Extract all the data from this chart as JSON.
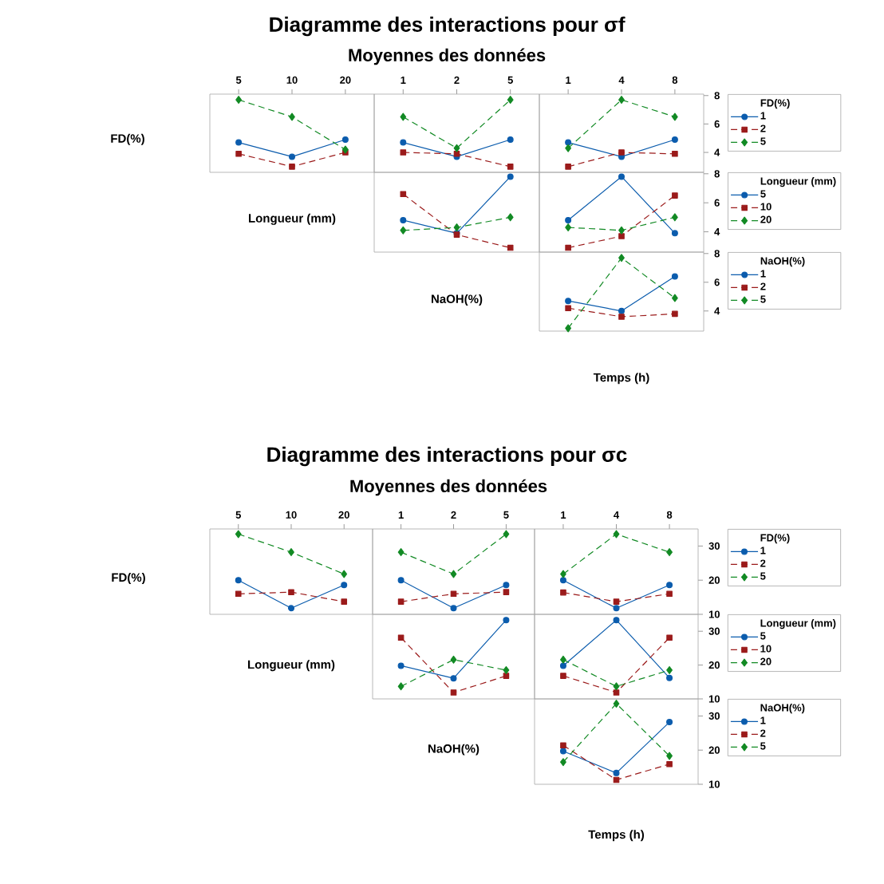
{
  "chart_data": [
    {
      "type": "line",
      "ylabel": "FD(%)",
      "xlabel": "Longueur (mm)",
      "categories": [
        "5",
        "10",
        "20"
      ],
      "ylim": [
        2.6,
        8.1
      ],
      "tick_labels": "x",
      "series": [
        {
          "color": "#0b5cad",
          "values": [
            4.7,
            3.7,
            4.9
          ],
          "marker": "circle",
          "line_style": "solid"
        },
        {
          "color": "#9b1b1b",
          "values": [
            3.9,
            3.0,
            4.0
          ],
          "marker": "square",
          "line_style": "dashed"
        },
        {
          "color": "#128a24",
          "values": [
            7.7,
            6.5,
            4.2
          ],
          "marker": "diamond",
          "line_style": "dashed"
        }
      ]
    },
    {
      "type": "line",
      "title": "Diagramme des interactions pour σf",
      "subtitle": "Moyennes des données",
      "categories": [
        "1",
        "2",
        "5"
      ],
      "ylim": [
        2.6,
        8.1
      ],
      "tick_labels": "x",
      "series": [
        {
          "color": "#0b5cad",
          "values": [
            4.7,
            3.7,
            4.9
          ],
          "marker": "circle",
          "line_style": "solid"
        },
        {
          "color": "#9b1b1b",
          "values": [
            4.0,
            3.9,
            3.0
          ],
          "marker": "square",
          "line_style": "dashed"
        },
        {
          "color": "#128a24",
          "values": [
            6.5,
            4.3,
            7.7
          ],
          "marker": "diamond",
          "line_style": "dashed"
        }
      ]
    },
    {
      "type": "line",
      "categories": [
        "1",
        "4",
        "8"
      ],
      "ylim": [
        2.6,
        8.1
      ],
      "yticks": [
        4,
        6,
        8
      ],
      "legend": "right",
      "legend_title": "FD(%)",
      "series": [
        {
          "name": "1",
          "color": "#0b5cad",
          "values": [
            4.7,
            3.7,
            4.9
          ],
          "marker": "circle",
          "line_style": "solid"
        },
        {
          "name": "2",
          "color": "#9b1b1b",
          "values": [
            3.0,
            4.0,
            3.9
          ],
          "marker": "square",
          "line_style": "dashed"
        },
        {
          "name": "5",
          "color": "#128a24",
          "values": [
            4.3,
            7.7,
            6.5
          ],
          "marker": "diamond",
          "line_style": "dashed"
        }
      ]
    },
    {
      "type": "line",
      "xlabel": "NaOH(%)",
      "categories": [
        "1",
        "2",
        "5"
      ],
      "ylim": [
        2.6,
        8.1
      ],
      "tick_labels": false,
      "series": [
        {
          "color": "#0b5cad",
          "values": [
            4.8,
            3.9,
            7.8
          ],
          "marker": "circle",
          "line_style": "solid"
        },
        {
          "color": "#9b1b1b",
          "values": [
            6.6,
            3.8,
            2.9
          ],
          "marker": "square",
          "line_style": "dashed"
        },
        {
          "color": "#128a24",
          "values": [
            4.1,
            4.3,
            5.0
          ],
          "marker": "diamond",
          "line_style": "dashed"
        }
      ]
    },
    {
      "type": "line",
      "categories": [
        "1",
        "4",
        "8"
      ],
      "ylim": [
        2.6,
        8.1
      ],
      "yticks": [
        4,
        6,
        8
      ],
      "tick_labels": "y",
      "legend": "right",
      "legend_title": "Longueur (mm)",
      "series": [
        {
          "name": "5",
          "color": "#0b5cad",
          "values": [
            4.8,
            7.8,
            3.9
          ],
          "marker": "circle",
          "line_style": "solid"
        },
        {
          "name": "10",
          "color": "#9b1b1b",
          "values": [
            2.9,
            3.7,
            6.5
          ],
          "marker": "square",
          "line_style": "dashed"
        },
        {
          "name": "20",
          "color": "#128a24",
          "values": [
            4.3,
            4.1,
            5.0
          ],
          "marker": "diamond",
          "line_style": "dashed"
        }
      ]
    },
    {
      "type": "line",
      "xlabel": "Temps (h)",
      "categories": [
        "1",
        "4",
        "8"
      ],
      "ylim": [
        2.6,
        8.1
      ],
      "yticks": [
        4,
        6,
        8
      ],
      "tick_labels": "y",
      "legend": "right",
      "legend_title": "NaOH(%)",
      "series": [
        {
          "name": "1",
          "color": "#0b5cad",
          "values": [
            4.7,
            4.0,
            6.4
          ],
          "marker": "circle",
          "line_style": "solid"
        },
        {
          "name": "2",
          "color": "#9b1b1b",
          "values": [
            4.2,
            3.6,
            3.8
          ],
          "marker": "square",
          "line_style": "dashed"
        },
        {
          "name": "5",
          "color": "#128a24",
          "values": [
            2.8,
            7.7,
            4.9
          ],
          "marker": "diamond",
          "line_style": "dashed"
        }
      ]
    },
    {
      "type": "line",
      "ylabel": "FD(%)",
      "xlabel": "Longueur (mm)",
      "categories": [
        "5",
        "10",
        "20"
      ],
      "ylim": [
        10,
        35
      ],
      "tick_labels": "x",
      "series": [
        {
          "color": "#0b5cad",
          "values": [
            20.0,
            11.8,
            18.6
          ],
          "marker": "circle",
          "line_style": "solid"
        },
        {
          "color": "#9b1b1b",
          "values": [
            16.0,
            16.5,
            13.7
          ],
          "marker": "square",
          "line_style": "dashed"
        },
        {
          "color": "#128a24",
          "values": [
            33.5,
            28.2,
            21.8
          ],
          "marker": "diamond",
          "line_style": "dashed"
        }
      ]
    },
    {
      "type": "line",
      "title": "Diagramme des interactions pour σc",
      "subtitle": "Moyennes des données",
      "categories": [
        "1",
        "2",
        "5"
      ],
      "ylim": [
        10,
        35
      ],
      "tick_labels": "x",
      "series": [
        {
          "color": "#0b5cad",
          "values": [
            20.0,
            11.8,
            18.6
          ],
          "marker": "circle",
          "line_style": "solid"
        },
        {
          "color": "#9b1b1b",
          "values": [
            13.7,
            16.0,
            16.5
          ],
          "marker": "square",
          "line_style": "dashed"
        },
        {
          "color": "#128a24",
          "values": [
            28.2,
            21.8,
            33.5
          ],
          "marker": "diamond",
          "line_style": "dashed"
        }
      ]
    },
    {
      "type": "line",
      "categories": [
        "1",
        "4",
        "8"
      ],
      "ylim": [
        10,
        35
      ],
      "yticks": [
        10,
        20,
        30
      ],
      "legend": "right",
      "legend_title": "FD(%)",
      "series": [
        {
          "name": "1",
          "color": "#0b5cad",
          "values": [
            20.0,
            11.8,
            18.6
          ],
          "marker": "circle",
          "line_style": "solid"
        },
        {
          "name": "2",
          "color": "#9b1b1b",
          "values": [
            16.4,
            13.7,
            16.0
          ],
          "marker": "square",
          "line_style": "dashed"
        },
        {
          "name": "5",
          "color": "#128a24",
          "values": [
            21.8,
            33.5,
            28.2
          ],
          "marker": "diamond",
          "line_style": "dashed"
        }
      ]
    },
    {
      "type": "line",
      "xlabel": "NaOH(%)",
      "categories": [
        "1",
        "2",
        "5"
      ],
      "ylim": [
        10,
        35
      ],
      "tick_labels": false,
      "series": [
        {
          "color": "#0b5cad",
          "values": [
            19.8,
            16.1,
            33.3
          ],
          "marker": "circle",
          "line_style": "solid"
        },
        {
          "color": "#9b1b1b",
          "values": [
            28.1,
            11.9,
            16.8
          ],
          "marker": "square",
          "line_style": "dashed"
        },
        {
          "color": "#128a24",
          "values": [
            13.7,
            21.6,
            18.5
          ],
          "marker": "diamond",
          "line_style": "dashed"
        }
      ]
    },
    {
      "type": "line",
      "categories": [
        "1",
        "4",
        "8"
      ],
      "ylim": [
        10,
        35
      ],
      "yticks": [
        10,
        20,
        30
      ],
      "tick_labels": "y",
      "legend": "right",
      "legend_title": "Longueur (mm)",
      "series": [
        {
          "name": "5",
          "color": "#0b5cad",
          "values": [
            19.8,
            33.3,
            16.2
          ],
          "marker": "circle",
          "line_style": "solid"
        },
        {
          "name": "10",
          "color": "#9b1b1b",
          "values": [
            16.8,
            11.9,
            28.1
          ],
          "marker": "square",
          "line_style": "dashed"
        },
        {
          "name": "20",
          "color": "#128a24",
          "values": [
            21.6,
            13.7,
            18.5
          ],
          "marker": "diamond",
          "line_style": "dashed"
        }
      ]
    },
    {
      "type": "line",
      "xlabel": "Temps (h)",
      "categories": [
        "1",
        "4",
        "8"
      ],
      "ylim": [
        10,
        35
      ],
      "yticks": [
        10,
        20,
        30
      ],
      "tick_labels": "y",
      "legend": "right",
      "legend_title": "NaOH(%)",
      "series": [
        {
          "name": "1",
          "color": "#0b5cad",
          "values": [
            19.7,
            13.3,
            28.2
          ],
          "marker": "circle",
          "line_style": "solid"
        },
        {
          "name": "2",
          "color": "#9b1b1b",
          "values": [
            21.4,
            11.3,
            15.9
          ],
          "marker": "square",
          "line_style": "dashed"
        },
        {
          "name": "5",
          "color": "#128a24",
          "values": [
            16.5,
            33.6,
            18.3
          ],
          "marker": "diamond",
          "line_style": "dashed"
        }
      ]
    }
  ]
}
